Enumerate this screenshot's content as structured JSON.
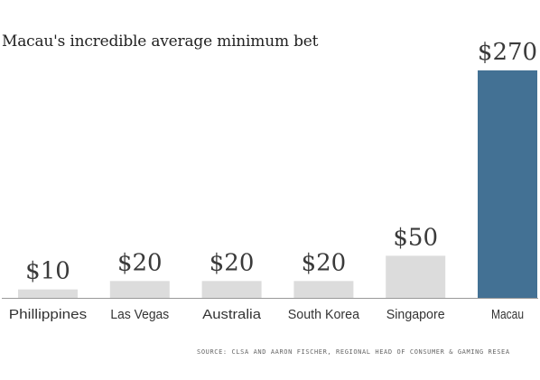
{
  "chart_data": {
    "type": "bar",
    "title": "Macau's incredible average minimum bet",
    "categories": [
      "Phillippines",
      "Las Vegas",
      "Australia",
      "South Korea",
      "Singapore",
      "Macau"
    ],
    "values": [
      10,
      20,
      20,
      20,
      50,
      270
    ],
    "value_labels": [
      "$10",
      "$20",
      "$20",
      "$20",
      "$50",
      "$270"
    ],
    "colors": [
      "#dcdcdc",
      "#dcdcdc",
      "#dcdcdc",
      "#dcdcdc",
      "#dcdcdc",
      "#437194"
    ],
    "highlight_color": "#437194",
    "bar_color": "#dcdcdc",
    "ylim": [
      0,
      270
    ],
    "grid": false,
    "xlabel": "",
    "ylabel": ""
  },
  "source": "SOURCE: CLSA AND AARON FISCHER, REGIONAL HEAD OF CONSUMER & GAMING RESEA"
}
